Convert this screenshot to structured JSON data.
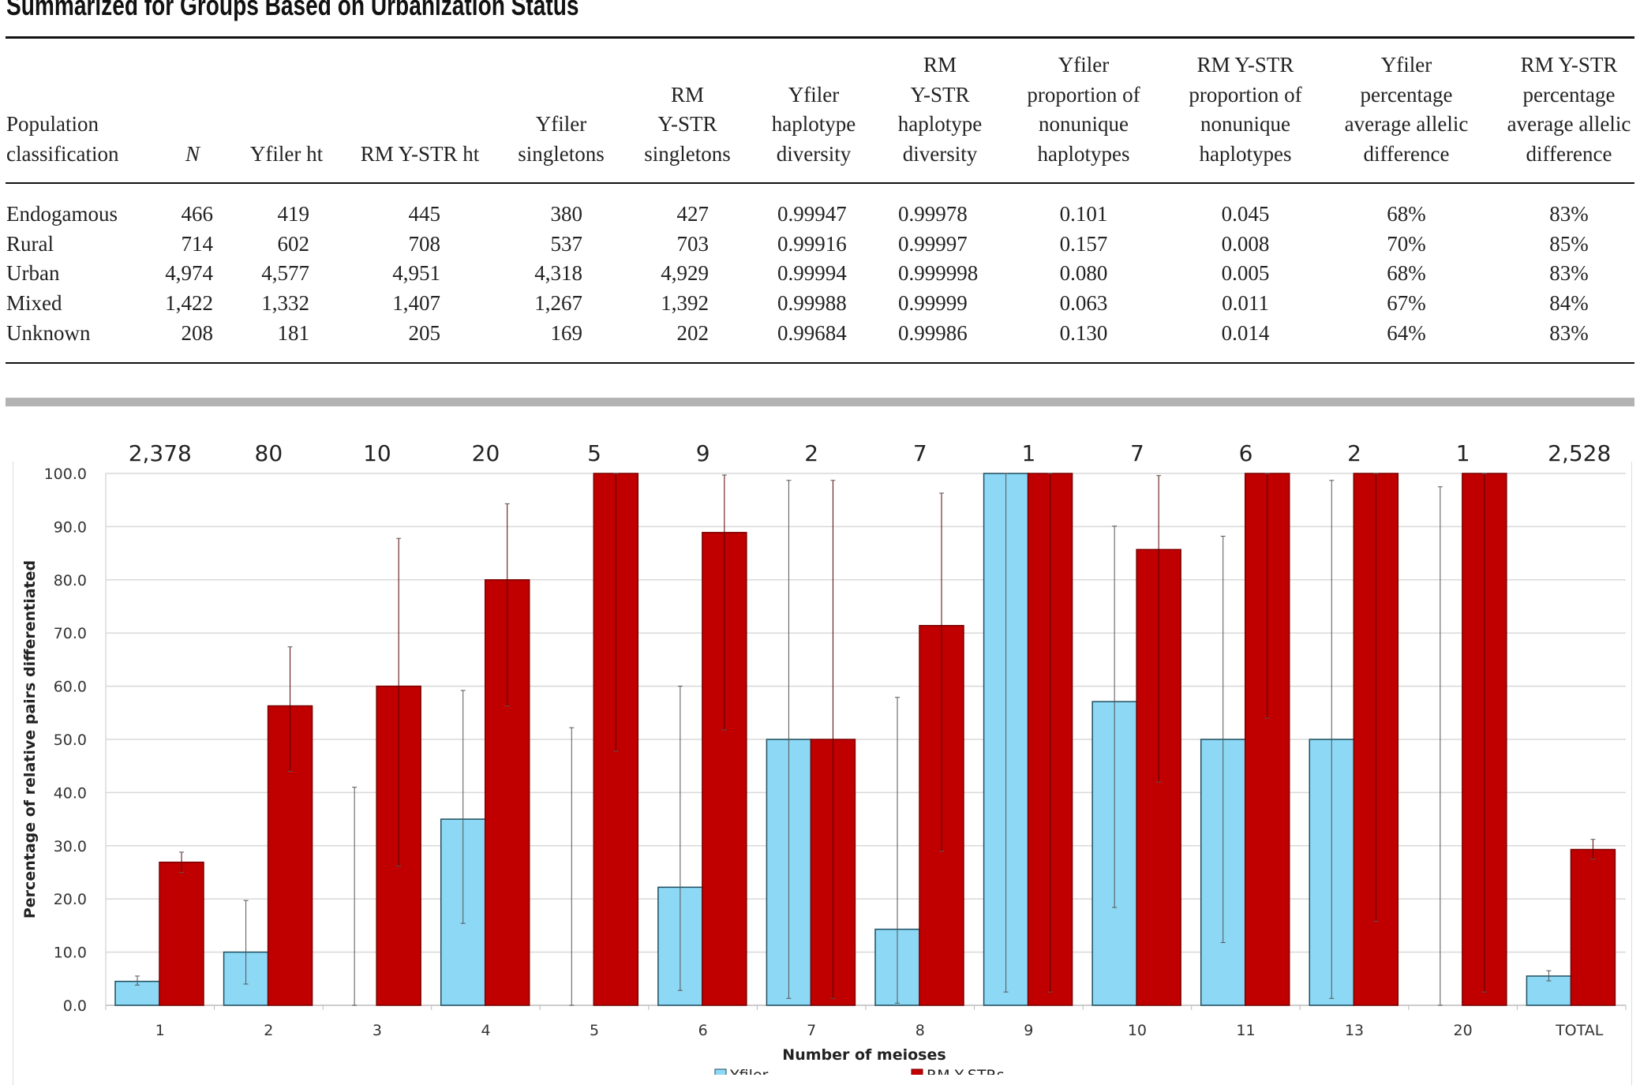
{
  "title": "Summarized for Groups Based on Urbanization Status",
  "table": {
    "headers": [
      "Population\nclassification",
      "N",
      "Yfiler ht",
      "RM Y-STR ht",
      "Yfiler\nsingletons",
      "RM\nY-STR\nsingletons",
      "Yfiler\nhaplotype\ndiversity",
      "RM\nY-STR\nhaplotype\ndiversity",
      "Yfiler\nproportion of\nnonunique\nhaplotypes",
      "RM Y-STR\nproportion of\nnonunique\nhaplotypes",
      "Yfiler\npercentage\naverage allelic\ndifference",
      "RM Y-STR\npercentage\naverage allelic\ndifference"
    ],
    "rows": [
      [
        "Endogamous",
        "466",
        "419",
        "445",
        "380",
        "427",
        "0.99947",
        "0.99978",
        "0.101",
        "0.045",
        "68%",
        "83%"
      ],
      [
        "Rural",
        "714",
        "602",
        "708",
        "537",
        "703",
        "0.99916",
        "0.99997",
        "0.157",
        "0.008",
        "70%",
        "85%"
      ],
      [
        "Urban",
        "4,974",
        "4,577",
        "4,951",
        "4,318",
        "4,929",
        "0.99994",
        "0.999998",
        "0.080",
        "0.005",
        "68%",
        "83%"
      ],
      [
        "Mixed",
        "1,422",
        "1,332",
        "1,407",
        "1,267",
        "1,392",
        "0.99988",
        "0.99999",
        "0.063",
        "0.011",
        "67%",
        "84%"
      ],
      [
        "Unknown",
        "208",
        "181",
        "205",
        "169",
        "202",
        "0.99684",
        "0.99986",
        "0.130",
        "0.014",
        "64%",
        "83%"
      ]
    ]
  },
  "chart_data": {
    "type": "bar",
    "xlabel": "Number of meioses",
    "ylabel": "Percentage of relative pairs differentiated",
    "ylim": [
      0,
      100
    ],
    "yticks": [
      "0.0",
      "10.0",
      "20.0",
      "30.0",
      "40.0",
      "50.0",
      "60.0",
      "70.0",
      "80.0",
      "90.0",
      "100.0"
    ],
    "grid": true,
    "legend_position": "bottom",
    "categories": [
      "1",
      "2",
      "3",
      "4",
      "5",
      "6",
      "7",
      "8",
      "9",
      "10",
      "11",
      "13",
      "20",
      "TOTAL"
    ],
    "counts": [
      "2,378",
      "80",
      "10",
      "20",
      "5",
      "9",
      "2",
      "7",
      "1",
      "7",
      "6",
      "2",
      "1",
      "2,528"
    ],
    "series": [
      {
        "name": "Yfiler",
        "color": "#8dd8f5",
        "values": [
          4.5,
          10.0,
          0,
          35.0,
          0,
          22.2,
          50.0,
          14.3,
          100,
          57.1,
          50.0,
          50.0,
          0,
          5.5
        ],
        "error": [
          [
            3.8,
            5.5
          ],
          [
            4,
            19.7
          ],
          [
            0,
            41
          ],
          [
            15.4,
            59.2
          ],
          [
            0,
            52.2
          ],
          [
            2.8,
            60
          ],
          [
            1.3,
            98.7
          ],
          [
            0.4,
            57.9
          ],
          [
            2.5,
            100
          ],
          [
            18.4,
            90.1
          ],
          [
            11.8,
            88.2
          ],
          [
            1.3,
            98.7
          ],
          [
            0,
            97.5
          ],
          [
            4.6,
            6.5
          ]
        ]
      },
      {
        "name": "RM Y-STRs",
        "color": "#c00000",
        "values": [
          26.9,
          56.3,
          60.0,
          80.0,
          100,
          88.9,
          50.0,
          71.4,
          100,
          85.7,
          100,
          100,
          100,
          29.3
        ],
        "error": [
          [
            25,
            28.8
          ],
          [
            44,
            67.4
          ],
          [
            26.2,
            87.8
          ],
          [
            56.3,
            94.3
          ],
          [
            47.8,
            100
          ],
          [
            51.8,
            99.7
          ],
          [
            1.3,
            98.7
          ],
          [
            29,
            96.3
          ],
          [
            2.5,
            100
          ],
          [
            42,
            99.6
          ],
          [
            54,
            100
          ],
          [
            15.8,
            100
          ],
          [
            2.5,
            100
          ],
          [
            27.5,
            31.2
          ]
        ]
      }
    ]
  }
}
